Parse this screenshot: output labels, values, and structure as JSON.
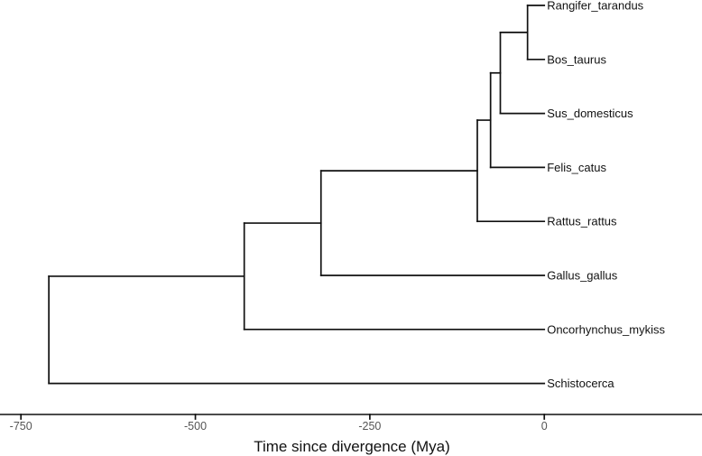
{
  "chart_data": {
    "type": "phylogenetic-tree",
    "xlabel": "Time since divergence (Mya)",
    "xlim": [
      -780,
      226
    ],
    "ticks": [
      {
        "value": -750,
        "label": "-750"
      },
      {
        "value": -500,
        "label": "-500"
      },
      {
        "value": -250,
        "label": "-250"
      },
      {
        "value": 0,
        "label": "0"
      }
    ],
    "tips": [
      {
        "name": "Rangifer_tarandus",
        "time": 0
      },
      {
        "name": "Bos_taurus",
        "time": 0
      },
      {
        "name": "Sus_domesticus",
        "time": 0
      },
      {
        "name": "Felis_catus",
        "time": 0
      },
      {
        "name": "Rattus_rattus",
        "time": 0
      },
      {
        "name": "Gallus_gallus",
        "time": 0
      },
      {
        "name": "Oncorhynchus_mykiss",
        "time": 0
      },
      {
        "name": "Schistocerca",
        "time": 0
      }
    ],
    "nodes": [
      {
        "id": "n_rangifer_bos",
        "time": -24,
        "children": [
          "Rangifer_tarandus",
          "Bos_taurus"
        ]
      },
      {
        "id": "n_plus_sus",
        "time": -63,
        "children": [
          "n_rangifer_bos",
          "Sus_domesticus"
        ]
      },
      {
        "id": "n_plus_felis",
        "time": -77,
        "children": [
          "n_plus_sus",
          "Felis_catus"
        ]
      },
      {
        "id": "n_plus_rattus",
        "time": -96,
        "children": [
          "n_plus_felis",
          "Rattus_rattus"
        ]
      },
      {
        "id": "n_plus_gallus",
        "time": -320,
        "children": [
          "n_plus_rattus",
          "Gallus_gallus"
        ]
      },
      {
        "id": "n_plus_oncorhynchus",
        "time": -430,
        "children": [
          "n_plus_gallus",
          "Oncorhynchus_mykiss"
        ]
      },
      {
        "id": "root",
        "time": -710,
        "children": [
          "n_plus_oncorhynchus",
          "Schistocerca"
        ]
      }
    ]
  }
}
